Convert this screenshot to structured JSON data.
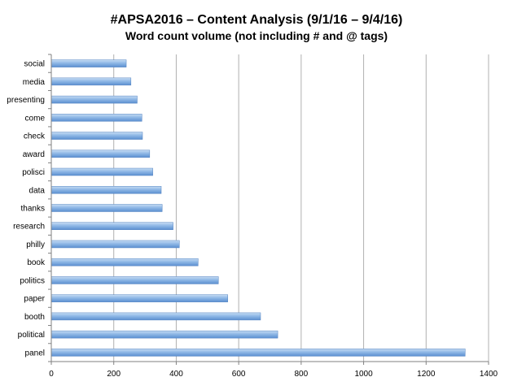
{
  "chart_data": {
    "type": "bar",
    "orientation": "horizontal",
    "title": "#APSA2016 – Content Analysis (9/1/16 – 9/4/16)",
    "subtitle": "Word count volume (not including # and @ tags)",
    "xlabel": "",
    "ylabel": "",
    "categories": [
      "social",
      "media",
      "presenting",
      "come",
      "check",
      "award",
      "polisci",
      "data",
      "thanks",
      "research",
      "philly",
      "book",
      "politics",
      "paper",
      "booth",
      "political",
      "panel"
    ],
    "values": [
      240,
      255,
      275,
      290,
      292,
      315,
      325,
      352,
      355,
      390,
      410,
      470,
      535,
      565,
      670,
      725,
      1325
    ],
    "xlim": [
      0,
      1400
    ],
    "xticks": [
      0,
      200,
      400,
      600,
      800,
      1000,
      1200,
      1400
    ],
    "grid": "vertical",
    "legend": "none",
    "colors": {
      "bar_top": "#c6dcf3",
      "bar_mid": "#8fb8e6",
      "bar_bottom": "#5b8fd0",
      "bar_edge": "#5584c2",
      "grid": "#b0b0b0",
      "axis": "#808080"
    }
  }
}
